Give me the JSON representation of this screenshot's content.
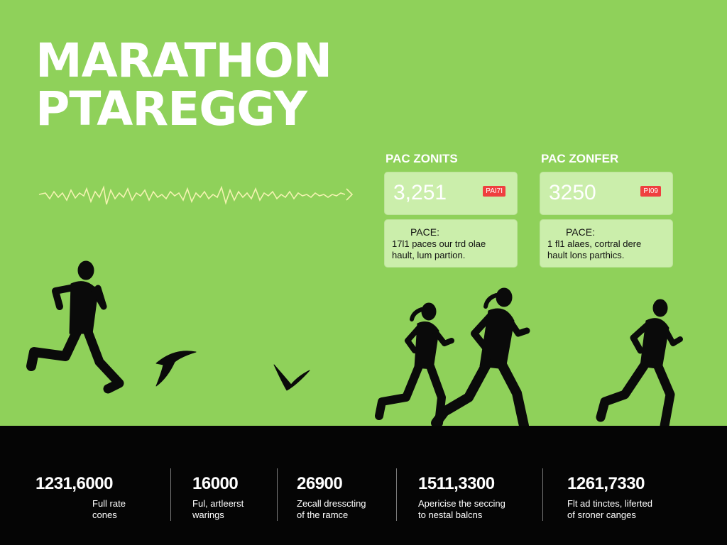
{
  "title": {
    "line1": "MARATHON",
    "line2": "PTAREGGY"
  },
  "zones": [
    {
      "heading": "PAC ZONITS",
      "value": "3,251",
      "tag": "PAI7I",
      "pace_label": "PACE:",
      "pace_line1": "17l1 paces our trd olae",
      "pace_line2": "hault, lum partion."
    },
    {
      "heading": "PAC ZONFER",
      "value": "3250",
      "tag": "PI09",
      "pace_label": "PACE:",
      "pace_line1": "1 fl1 alaes, cortral dere",
      "pace_line2": "hault lons parthics."
    }
  ],
  "stats": [
    {
      "value": "1231,6000",
      "caption1": "Full rate",
      "caption2": "cones"
    },
    {
      "value": "16000",
      "caption1": "Ful, artleerst",
      "caption2": "warings"
    },
    {
      "value": "26900",
      "caption1": "Zecall dresscting",
      "caption2": "of the ramce"
    },
    {
      "value": "1511,3300",
      "caption1": "Apericise the seccing",
      "caption2": "to nestal balcns"
    },
    {
      "value": "1261,7330",
      "caption1": "Flt ad tinctes, liferted",
      "caption2": "of sroner canges"
    }
  ],
  "colors": {
    "background": "#8fd15a",
    "card": "#cbeeab",
    "tag": "#ef3f3f",
    "bar": "#050505",
    "wave": "#f3f3b0"
  },
  "icons": [
    "heartbeat-wave-icon",
    "runner-silhouette-icon",
    "bird-silhouette-icon"
  ]
}
